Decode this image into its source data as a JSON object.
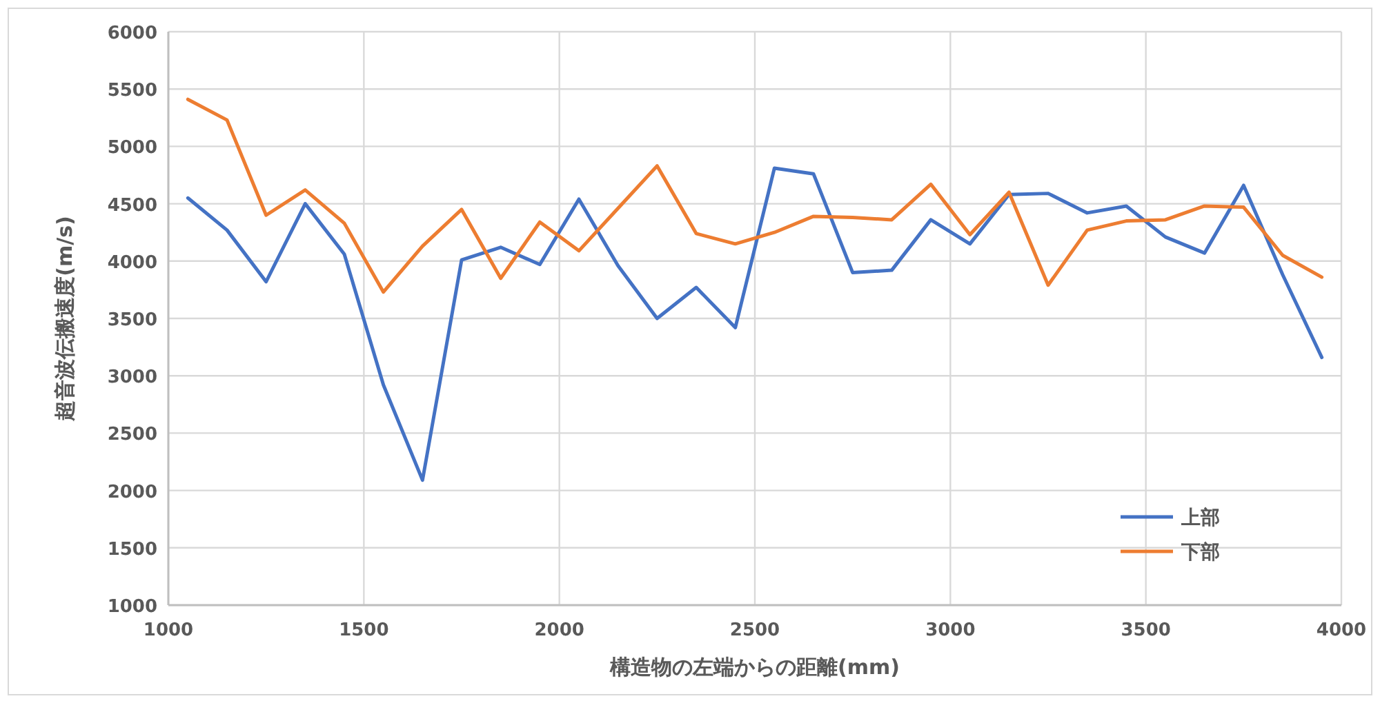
{
  "chart_data": {
    "type": "line",
    "xlabel": "構造物の左端からの距離(mm)",
    "ylabel": "超音波伝搬速度(m/s)",
    "x": [
      1050,
      1150,
      1250,
      1350,
      1450,
      1550,
      1650,
      1750,
      1850,
      1950,
      2050,
      2150,
      2250,
      2350,
      2450,
      2550,
      2650,
      2750,
      2850,
      2950,
      3050,
      3150,
      3250,
      3350,
      3450,
      3550,
      3650,
      3750,
      3850,
      3950
    ],
    "series": [
      {
        "name": "上部",
        "color": "#4472c4",
        "values": [
          4550,
          4270,
          3820,
          4500,
          4060,
          2920,
          2090,
          4010,
          4120,
          3970,
          4540,
          3960,
          3500,
          3770,
          3420,
          4810,
          4760,
          3900,
          3920,
          4360,
          4150,
          4580,
          4590,
          4420,
          4480,
          4210,
          4070,
          4660,
          3880,
          3160
        ]
      },
      {
        "name": "下部",
        "color": "#ed7d31",
        "values": [
          5410,
          5230,
          4400,
          4620,
          4330,
          3730,
          4130,
          4450,
          3850,
          4340,
          4090,
          4460,
          4830,
          4240,
          4150,
          4250,
          4390,
          4380,
          4360,
          4670,
          4230,
          4600,
          3790,
          4270,
          4350,
          4360,
          4480,
          4470,
          4050,
          3860
        ]
      }
    ],
    "xlim": [
      1000,
      4000
    ],
    "xticks": [
      1000,
      1500,
      2000,
      2500,
      3000,
      3500,
      4000
    ],
    "ylim": [
      1000,
      6000
    ],
    "yticks": [
      1000,
      1500,
      2000,
      2500,
      3000,
      3500,
      4000,
      4500,
      5000,
      5500,
      6000
    ],
    "grid": true,
    "legend": "bottom right",
    "marker": "none",
    "line_style": "solid"
  }
}
